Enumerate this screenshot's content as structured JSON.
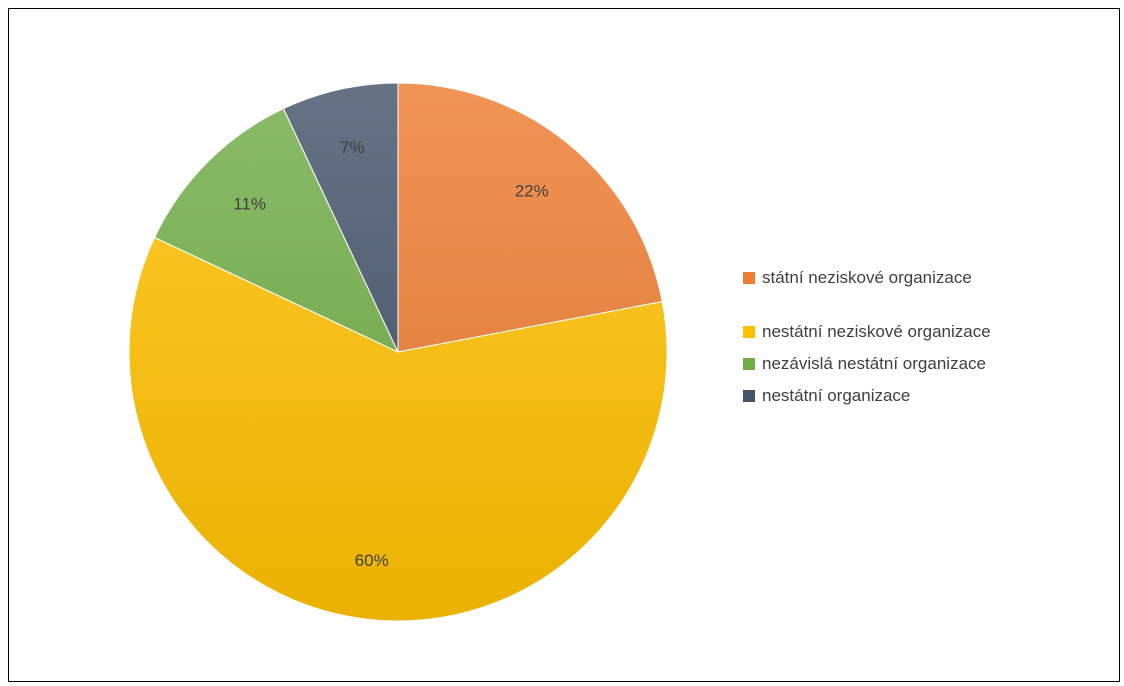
{
  "chart_data": {
    "type": "pie",
    "title": "",
    "legend_position": "right",
    "slices": [
      {
        "name": "státní neziskové organizace",
        "value": 22,
        "label": "22%",
        "color": "#ED7D31"
      },
      {
        "name": "nestátní neziskové organizace",
        "value": 60,
        "label": "60%",
        "color": "#FFC000"
      },
      {
        "name": "nezávislá nestátní organizace",
        "value": 11,
        "label": "11%",
        "color": "#70AD47"
      },
      {
        "name": "nestátní organizace",
        "value": 7,
        "label": "7%",
        "color": "#44546A"
      }
    ]
  }
}
